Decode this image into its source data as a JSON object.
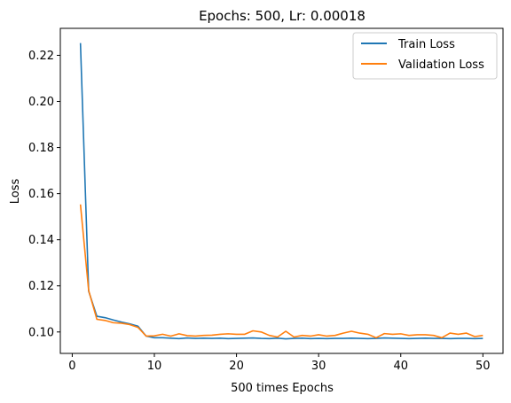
{
  "chart_data": {
    "type": "line",
    "title": "Epochs: 500, Lr: 0.00018",
    "xlabel": "500 times Epochs",
    "ylabel": "Loss",
    "xlim": [
      -1.45,
      52.45
    ],
    "ylim": [
      0.0907,
      0.2317
    ],
    "xticks": [
      0,
      10,
      20,
      30,
      40,
      50
    ],
    "xtick_labels": [
      "0",
      "10",
      "20",
      "30",
      "40",
      "50"
    ],
    "yticks": [
      0.1,
      0.12,
      0.14,
      0.16,
      0.18,
      0.2,
      0.22
    ],
    "ytick_labels": [
      "0.10",
      "0.12",
      "0.14",
      "0.16",
      "0.18",
      "0.20",
      "0.22"
    ],
    "grid": false,
    "legend_position": "top-right",
    "x": [
      1,
      2,
      3,
      4,
      5,
      6,
      7,
      8,
      9,
      10,
      11,
      12,
      13,
      14,
      15,
      16,
      17,
      18,
      19,
      20,
      21,
      22,
      23,
      24,
      25,
      26,
      27,
      28,
      29,
      30,
      31,
      32,
      33,
      34,
      35,
      36,
      37,
      38,
      39,
      40,
      41,
      42,
      43,
      44,
      45,
      46,
      47,
      48,
      49,
      50
    ],
    "series": [
      {
        "name": "Train Loss",
        "color": "#1f77b4",
        "values": [
          0.2253,
          0.1177,
          0.1068,
          0.1062,
          0.1052,
          0.1043,
          0.1035,
          0.1025,
          0.0982,
          0.0975,
          0.0975,
          0.0973,
          0.0971,
          0.0974,
          0.0972,
          0.0973,
          0.0972,
          0.0973,
          0.0971,
          0.0972,
          0.0973,
          0.0974,
          0.0972,
          0.0971,
          0.0973,
          0.097,
          0.0972,
          0.0973,
          0.0971,
          0.0972,
          0.0971,
          0.0972,
          0.0972,
          0.0973,
          0.0972,
          0.0971,
          0.0972,
          0.0974,
          0.0973,
          0.0972,
          0.0971,
          0.0972,
          0.0973,
          0.0972,
          0.0972,
          0.0971,
          0.0972,
          0.0972,
          0.0971,
          0.0972
        ]
      },
      {
        "name": "Validation Loss",
        "color": "#ff7f0e",
        "values": [
          0.1553,
          0.118,
          0.1055,
          0.105,
          0.104,
          0.1038,
          0.1032,
          0.102,
          0.0982,
          0.0983,
          0.099,
          0.0982,
          0.0992,
          0.0984,
          0.0982,
          0.0985,
          0.0986,
          0.099,
          0.0992,
          0.099,
          0.099,
          0.1005,
          0.1,
          0.0985,
          0.0978,
          0.1003,
          0.0978,
          0.0985,
          0.0982,
          0.0988,
          0.0982,
          0.0985,
          0.0995,
          0.1003,
          0.0995,
          0.099,
          0.0975,
          0.0993,
          0.099,
          0.0992,
          0.0985,
          0.0988,
          0.0988,
          0.0985,
          0.0975,
          0.0995,
          0.099,
          0.0995,
          0.098,
          0.0985
        ]
      }
    ]
  }
}
